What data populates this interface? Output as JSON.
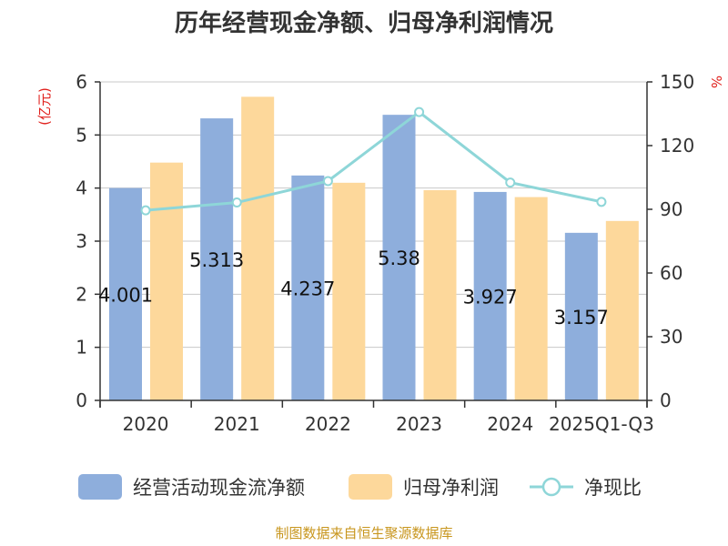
{
  "chart_data": {
    "type": "bar",
    "title": "历年经营现金净额、归母净利润情况",
    "categories": [
      "2020",
      "2021",
      "2022",
      "2023",
      "2024",
      "2025Q1-Q3"
    ],
    "series": [
      {
        "name": "经营活动现金流净额",
        "axis": "left",
        "kind": "bar",
        "color": "#8eaedc",
        "values": [
          4.001,
          5.313,
          4.237,
          5.38,
          3.927,
          3.157
        ],
        "labels": [
          "4.001",
          "5.313",
          "4.237",
          "5.38",
          "3.927",
          "3.157"
        ]
      },
      {
        "name": "归母净利润",
        "axis": "left",
        "kind": "bar",
        "color": "#fdd89b",
        "values": [
          4.48,
          5.72,
          4.1,
          3.96,
          3.83,
          3.38
        ]
      },
      {
        "name": "净现比",
        "axis": "right",
        "kind": "line",
        "color": "#8ed6d8",
        "values": [
          89.5,
          93.2,
          103.3,
          135.8,
          102.6,
          93.5
        ]
      }
    ],
    "y_left": {
      "label": "(亿元)",
      "range": [
        0,
        6
      ],
      "ticks": [
        "0",
        "1",
        "2",
        "3",
        "4",
        "5",
        "6"
      ]
    },
    "y_right": {
      "label": "%",
      "range": [
        0,
        150
      ],
      "ticks": [
        "0",
        "30",
        "60",
        "90",
        "120",
        "150"
      ]
    },
    "grid": true,
    "legend_position": "bottom"
  },
  "source": "制图数据来自恒生聚源数据库"
}
